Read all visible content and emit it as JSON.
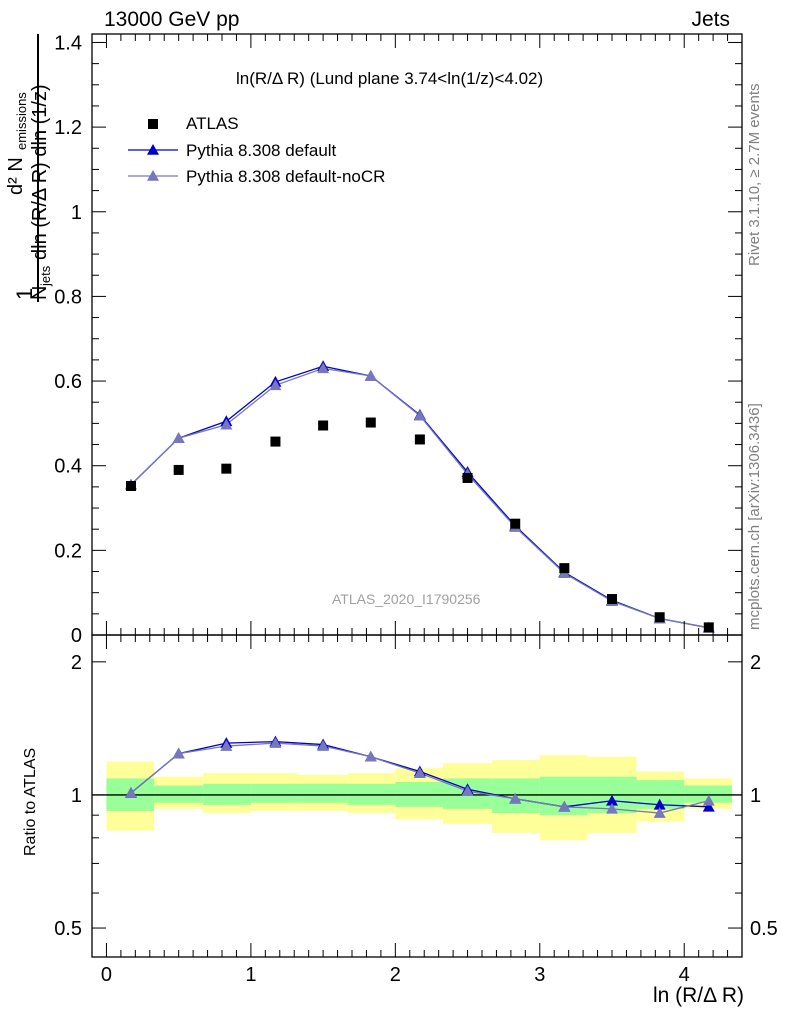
{
  "header": {
    "left_text": "13000 GeV pp",
    "right_text": "Jets"
  },
  "side_labels": {
    "rivet": "Rivet 3.1.10, ≥ 2.7M events",
    "mcplots": "mcplots.cern.ch [arXiv:1306.3436]"
  },
  "watermark": "ATLAS_2020_I1790256",
  "colors": {
    "atlas": "#000000",
    "pythia_default": "#0000cc",
    "pythia_nocr": "#7777bb",
    "band_inner": "#99ff99",
    "band_outer": "#ffff99"
  },
  "chart_data": [
    {
      "type": "scatter",
      "title": "ln(R/Δ R) (Lund plane 3.74<ln(1/z)<4.02)",
      "ylabel": "1/N_jets d²N_emissions / dln(R/Δ R) dln(1/z)",
      "xlim": [
        -0.1,
        4.4
      ],
      "ylim": [
        0,
        1.42
      ],
      "yticks": [
        0,
        0.2,
        0.4,
        0.6,
        0.8,
        1,
        1.2,
        1.4
      ],
      "yticklabels": [
        "0",
        "0.2",
        "0.4",
        "0.6",
        "0.8",
        "1",
        "1.2",
        "1.4"
      ],
      "legend": [
        "ATLAS",
        "Pythia 8.308 default",
        "Pythia 8.308 default-noCR"
      ],
      "legend_placement": "top-left",
      "x": [
        0.17,
        0.5,
        0.83,
        1.17,
        1.5,
        1.83,
        2.17,
        2.5,
        2.83,
        3.17,
        3.5,
        3.83,
        4.17
      ],
      "series": [
        {
          "name": "ATLAS",
          "values": [
            0.352,
            0.39,
            0.393,
            0.457,
            0.495,
            0.502,
            0.462,
            0.371,
            0.263,
            0.158,
            0.085,
            0.042,
            0.018
          ]
        },
        {
          "name": "Pythia 8.308 default",
          "values": [
            0.355,
            0.465,
            0.505,
            0.598,
            0.635,
            0.612,
            0.52,
            0.385,
            0.258,
            0.148,
            0.082,
            0.039,
            0.017
          ]
        },
        {
          "name": "Pythia 8.308 default-noCR",
          "values": [
            0.355,
            0.465,
            0.497,
            0.59,
            0.63,
            0.612,
            0.518,
            0.38,
            0.255,
            0.146,
            0.08,
            0.039,
            0.017
          ]
        }
      ]
    },
    {
      "type": "line",
      "ylabel": "Ratio to ATLAS",
      "xlabel": "ln (R/Δ R)",
      "xlim": [
        -0.1,
        4.4
      ],
      "ylim": [
        0.43,
        2.3
      ],
      "log_y": true,
      "xticks": [
        0,
        1,
        2,
        3,
        4
      ],
      "xticklabels": [
        "0",
        "1",
        "2",
        "3",
        "4"
      ],
      "yticks": [
        0.5,
        1,
        2
      ],
      "yticklabels": [
        "0.5",
        "1",
        "2"
      ],
      "bin_edges": [
        0,
        0.33,
        0.67,
        1.0,
        1.33,
        1.67,
        2.0,
        2.33,
        2.67,
        3.0,
        3.33,
        3.67,
        4.0,
        4.33
      ],
      "band_inner": [
        [
          0.92,
          1.09
        ],
        [
          0.96,
          1.05
        ],
        [
          0.95,
          1.06
        ],
        [
          0.96,
          1.06
        ],
        [
          0.96,
          1.06
        ],
        [
          0.95,
          1.06
        ],
        [
          0.94,
          1.07
        ],
        [
          0.93,
          1.09
        ],
        [
          0.91,
          1.09
        ],
        [
          0.9,
          1.1
        ],
        [
          0.91,
          1.1
        ],
        [
          0.93,
          1.08
        ],
        [
          0.96,
          1.05
        ]
      ],
      "band_outer": [
        [
          0.83,
          1.19
        ],
        [
          0.93,
          1.1
        ],
        [
          0.91,
          1.12
        ],
        [
          0.92,
          1.12
        ],
        [
          0.92,
          1.11
        ],
        [
          0.91,
          1.12
        ],
        [
          0.88,
          1.15
        ],
        [
          0.86,
          1.18
        ],
        [
          0.82,
          1.2
        ],
        [
          0.79,
          1.23
        ],
        [
          0.82,
          1.22
        ],
        [
          0.87,
          1.13
        ],
        [
          0.93,
          1.09
        ]
      ],
      "series": [
        {
          "name": "Pythia 8.308 default",
          "values": [
            1.01,
            1.24,
            1.31,
            1.32,
            1.3,
            1.22,
            1.13,
            1.03,
            0.98,
            0.94,
            0.97,
            0.95,
            0.94
          ]
        },
        {
          "name": "Pythia 8.308 default-noCR",
          "values": [
            1.01,
            1.24,
            1.29,
            1.31,
            1.29,
            1.22,
            1.12,
            1.02,
            0.98,
            0.94,
            0.93,
            0.91,
            0.97
          ]
        }
      ]
    }
  ]
}
